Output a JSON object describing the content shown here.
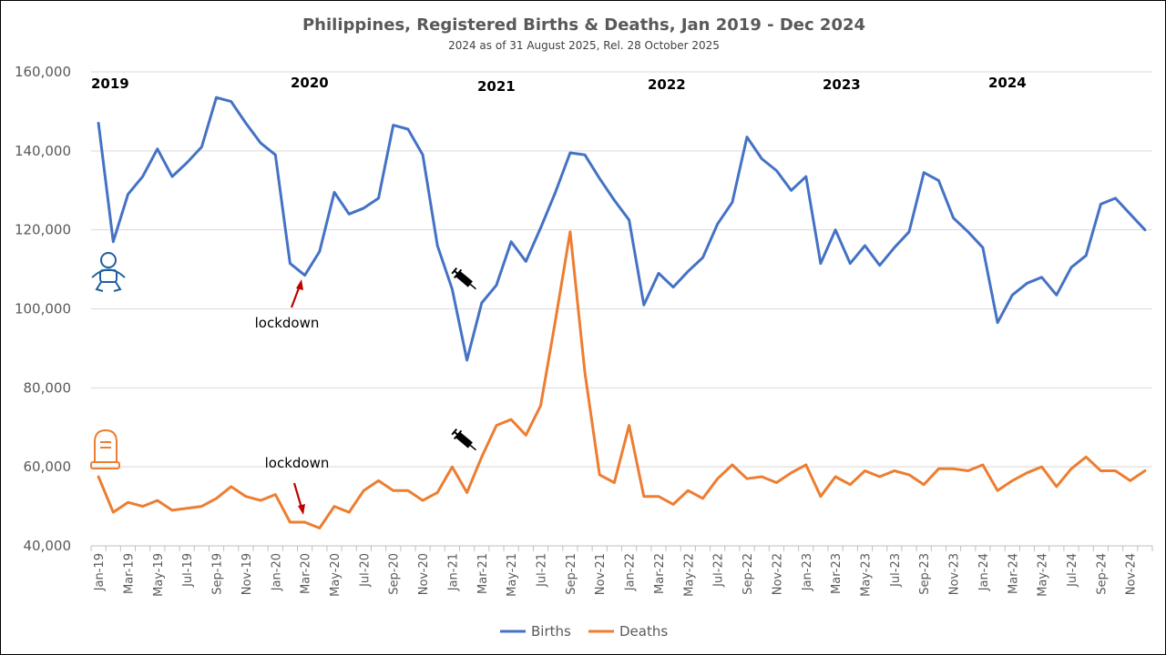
{
  "chart_data": {
    "type": "line",
    "title": "Philippines, Registered Births & Deaths, Jan 2019 - Dec 2024",
    "subtitle": "2024 as of 31 August 2025, Rel. 28 October 2025",
    "xlabel": "",
    "ylabel": "",
    "ylim": [
      40000,
      160000
    ],
    "yticks": [
      40000,
      60000,
      80000,
      100000,
      120000,
      140000,
      160000
    ],
    "ytick_labels": [
      "40,000",
      "60,000",
      "80,000",
      "100,000",
      "120,000",
      "140,000",
      "160,000"
    ],
    "grid": true,
    "legend_position": "bottom-center",
    "x": [
      "Jan-19",
      "Feb-19",
      "Mar-19",
      "Apr-19",
      "May-19",
      "Jun-19",
      "Jul-19",
      "Aug-19",
      "Sep-19",
      "Oct-19",
      "Nov-19",
      "Dec-19",
      "Jan-20",
      "Feb-20",
      "Mar-20",
      "Apr-20",
      "May-20",
      "Jun-20",
      "Jul-20",
      "Aug-20",
      "Sep-20",
      "Oct-20",
      "Nov-20",
      "Dec-20",
      "Jan-21",
      "Feb-21",
      "Mar-21",
      "Apr-21",
      "May-21",
      "Jun-21",
      "Jul-21",
      "Aug-21",
      "Sep-21",
      "Oct-21",
      "Nov-21",
      "Dec-21",
      "Jan-22",
      "Feb-22",
      "Mar-22",
      "Apr-22",
      "May-22",
      "Jun-22",
      "Jul-22",
      "Aug-22",
      "Sep-22",
      "Oct-22",
      "Nov-22",
      "Dec-22",
      "Jan-23",
      "Feb-23",
      "Mar-23",
      "Apr-23",
      "May-23",
      "Jun-23",
      "Jul-23",
      "Aug-23",
      "Sep-23",
      "Oct-23",
      "Nov-23",
      "Dec-23",
      "Jan-24",
      "Feb-24",
      "Mar-24",
      "Apr-24",
      "May-24",
      "Jun-24",
      "Jul-24",
      "Aug-24",
      "Sep-24",
      "Oct-24",
      "Nov-24",
      "Dec-24"
    ],
    "x_tick_labels": [
      "Jan-19",
      "Mar-19",
      "May-19",
      "Jul-19",
      "Sep-19",
      "Nov-19",
      "Jan-20",
      "Mar-20",
      "May-20",
      "Jul-20",
      "Sep-20",
      "Nov-20",
      "Jan-21",
      "Mar-21",
      "May-21",
      "Jul-21",
      "Sep-21",
      "Nov-21",
      "Jan-22",
      "Mar-22",
      "May-22",
      "Jul-22",
      "Sep-22",
      "Nov-22",
      "Jan-23",
      "Mar-23",
      "May-23",
      "Jul-23",
      "Sep-23",
      "Nov-23",
      "Jan-24",
      "Mar-24",
      "May-24",
      "Jul-24",
      "Sep-24",
      "Nov-24"
    ],
    "series": [
      {
        "name": "Births",
        "color": "#4472C4",
        "values": [
          147000,
          117000,
          129000,
          133500,
          140500,
          133500,
          137000,
          141000,
          153500,
          152500,
          147000,
          142000,
          139000,
          111500,
          108500,
          114500,
          129500,
          124000,
          125500,
          128000,
          146500,
          145500,
          139000,
          116000,
          105000,
          87000,
          101500,
          106000,
          117000,
          112000,
          120500,
          129500,
          139500,
          139000,
          133000,
          127500,
          122500,
          101000,
          109000,
          105500,
          109500,
          113000,
          121500,
          127000,
          143500,
          138000,
          135000,
          130000,
          133500,
          111500,
          120000,
          111500,
          116000,
          111000,
          115500,
          119500,
          134500,
          132500,
          123000,
          119500,
          115500,
          96500,
          103500,
          106500,
          108000,
          103500,
          110500,
          113500,
          126500,
          128000,
          124000,
          120000
        ]
      },
      {
        "name": "Deaths",
        "color": "#ED7D31",
        "values": [
          57500,
          48500,
          51000,
          50000,
          51500,
          49000,
          49500,
          50000,
          52000,
          55000,
          52500,
          51500,
          53000,
          46000,
          46000,
          44500,
          50000,
          48500,
          54000,
          56500,
          54000,
          54000,
          51500,
          53500,
          60000,
          53500,
          62500,
          70500,
          72000,
          68000,
          75500,
          97000,
          119500,
          84000,
          58000,
          56000,
          70500,
          52500,
          52500,
          50500,
          54000,
          52000,
          57000,
          60500,
          57000,
          57500,
          56000,
          58500,
          60500,
          52500,
          57500,
          55500,
          59000,
          57500,
          59000,
          58000,
          55500,
          59500,
          59500,
          59000,
          60500,
          54000,
          56500,
          58500,
          60000,
          55000,
          59500,
          62500,
          59000,
          59000,
          56500,
          59000
        ]
      }
    ],
    "year_labels": [
      "2019",
      "2020",
      "2021",
      "2022",
      "2023",
      "2024"
    ],
    "annotations": [
      {
        "text": "lockdown",
        "series": "Births",
        "month": "Mar-20",
        "arrow_direction": "up",
        "arrow_color": "#C00000"
      },
      {
        "text": "lockdown",
        "series": "Deaths",
        "month": "Mar-20",
        "arrow_direction": "down",
        "arrow_color": "#C00000"
      }
    ],
    "icons": [
      {
        "name": "baby-icon",
        "series": "Births",
        "color": "#1F5FA0"
      },
      {
        "name": "tombstone-icon",
        "series": "Deaths",
        "color": "#ED7D31"
      },
      {
        "name": "syringe-icon",
        "series": "Births",
        "month": "Feb-21"
      },
      {
        "name": "syringe-icon",
        "series": "Deaths",
        "month": "Feb-21"
      }
    ]
  }
}
